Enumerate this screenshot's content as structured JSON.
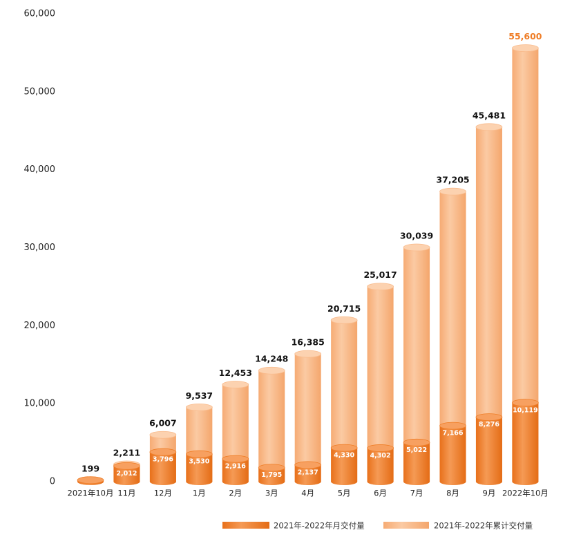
{
  "chart_data": {
    "type": "bar",
    "categories": [
      "2021年10月",
      "11月",
      "12月",
      "1月",
      "2月",
      "3月",
      "4月",
      "5月",
      "6月",
      "7月",
      "8月",
      "9月",
      "2022年10月"
    ],
    "series": [
      {
        "name": "2021年-2022年累计交付量",
        "color": "#f9bb8c",
        "values": [
          199,
          2211,
          6007,
          9537,
          12453,
          14248,
          16385,
          20715,
          25017,
          30039,
          37205,
          45481,
          55600
        ],
        "value_labels": [
          "199",
          "2,211",
          "6,007",
          "9,537",
          "12,453",
          "14,248",
          "16,385",
          "20,715",
          "25,017",
          "30,039",
          "37,205",
          "45,481",
          "55,600"
        ]
      },
      {
        "name": "2021年-2022年月交付量",
        "color": "#ef7d26",
        "values": [
          199,
          2012,
          3796,
          3530,
          2916,
          1795,
          2137,
          4330,
          4302,
          5022,
          7166,
          8276,
          10119
        ],
        "value_labels": [
          null,
          "2,012",
          "3,796",
          "3,530",
          "2,916",
          "1,795",
          "2,137",
          "4,330",
          "4,302",
          "5,022",
          "7,166",
          "8,276",
          "10,119"
        ]
      }
    ],
    "ylim": [
      0,
      60000
    ],
    "yticks": [
      0,
      {
        "value": 10000,
        "label": "10,000"
      },
      {
        "value": 20000,
        "label": "20,000"
      },
      {
        "value": 30000,
        "label": "30,000"
      },
      {
        "value": 40000,
        "label": "40,000"
      },
      {
        "value": 50000,
        "label": "50,000"
      },
      {
        "value": 60000,
        "label": "60,000"
      }
    ],
    "grid": false
  }
}
